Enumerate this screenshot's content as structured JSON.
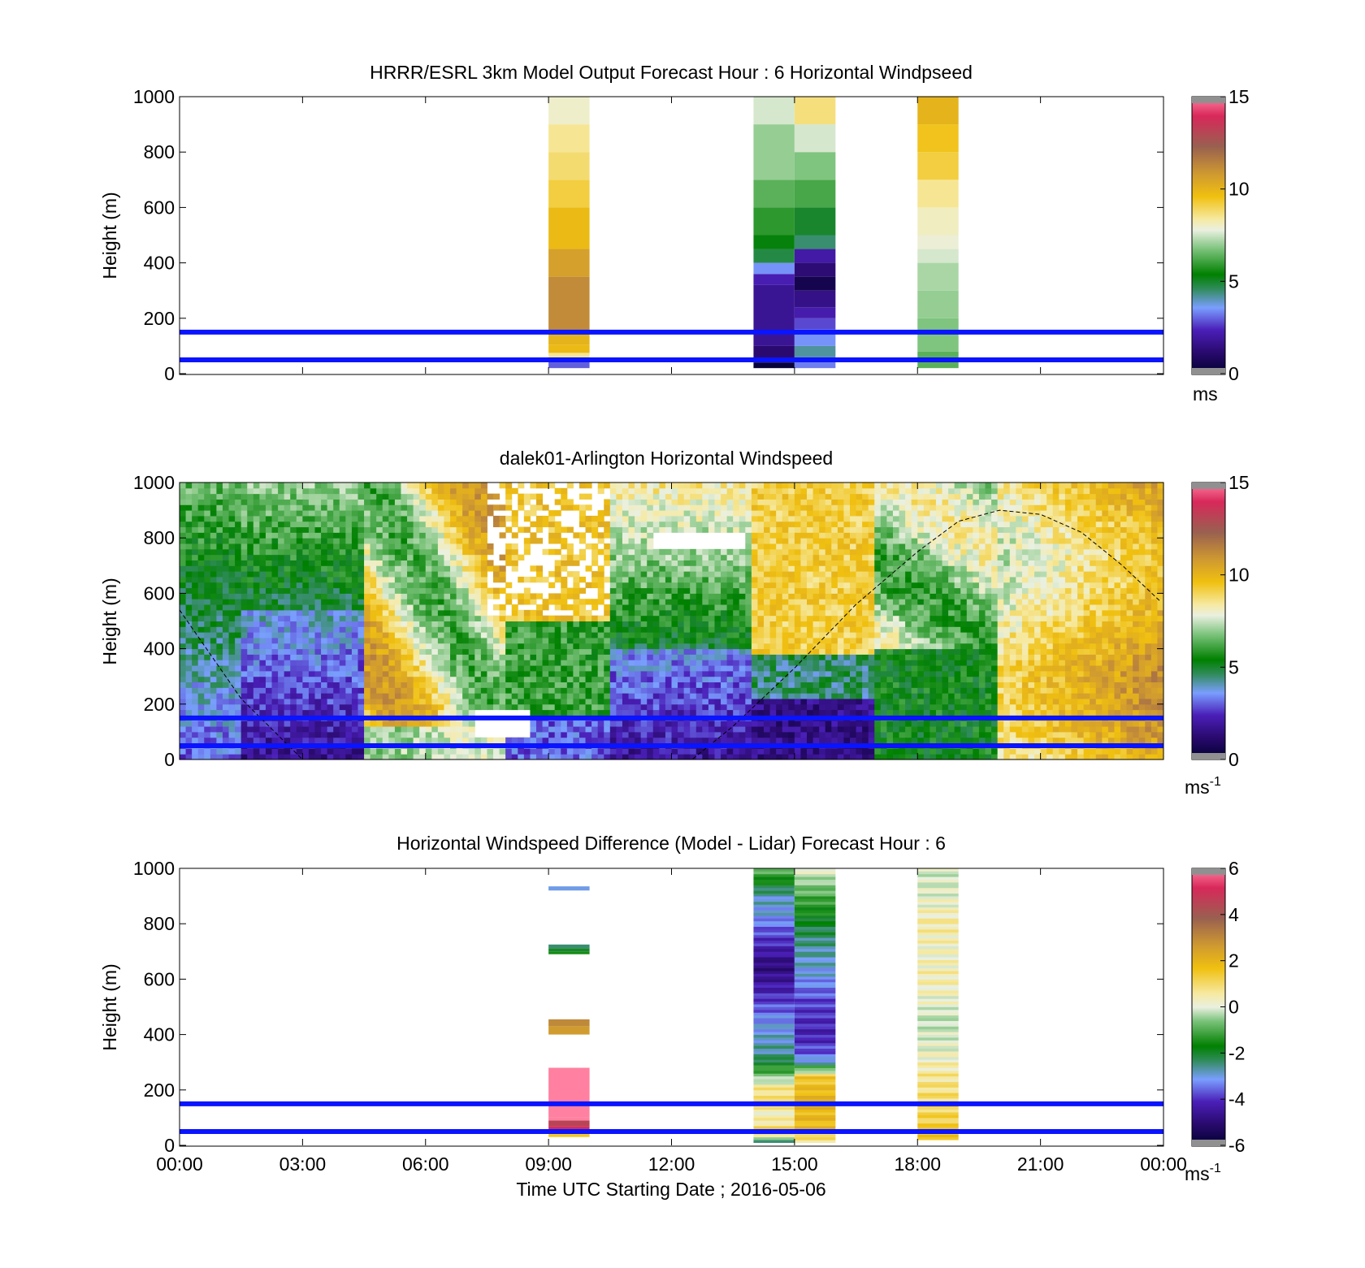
{
  "figure": {
    "xlabel": "Time UTC  Starting Date ; 2016-05-06",
    "start_date": "2016-05-06"
  },
  "chart_data": [
    {
      "type": "heatmap",
      "id": "model",
      "title": "HRRR/ESRL 3km Model Output   Forecast Hour : 6 Horizontal Windpseed",
      "ylabel": "Height (m)",
      "ylim": [
        0,
        1000
      ],
      "yticks": [
        "0",
        "200",
        "400",
        "600",
        "800",
        "1000"
      ],
      "xlim_hours": [
        0,
        24
      ],
      "xticks": [
        "00:00",
        "03:00",
        "06:00",
        "09:00",
        "12:00",
        "15:00",
        "18:00",
        "21:00",
        "00:00"
      ],
      "colorbar": {
        "ticks": [
          "0",
          "5",
          "10",
          "15"
        ],
        "range": [
          0,
          15
        ],
        "unit": "ms"
      },
      "reference_lines_m": [
        50,
        150
      ],
      "columns": [
        {
          "x_hours": [
            9.0,
            10.0
          ],
          "cells": [
            {
              "z0": 20,
              "z1": 50,
              "value": 3.0
            },
            {
              "z0": 50,
              "z1": 75,
              "value": 8.5
            },
            {
              "z0": 75,
              "z1": 105,
              "value": 9.8
            },
            {
              "z0": 105,
              "z1": 145,
              "value": 10.0
            },
            {
              "z0": 145,
              "z1": 350,
              "value": 11.2
            },
            {
              "z0": 350,
              "z1": 450,
              "value": 10.6
            },
            {
              "z0": 450,
              "z1": 600,
              "value": 9.8
            },
            {
              "z0": 600,
              "z1": 700,
              "value": 9.2
            },
            {
              "z0": 700,
              "z1": 800,
              "value": 8.8
            },
            {
              "z0": 800,
              "z1": 900,
              "value": 8.5
            },
            {
              "z0": 900,
              "z1": 1000,
              "value": 8.0
            }
          ]
        },
        {
          "x_hours": [
            14.0,
            15.0
          ],
          "cells": [
            {
              "z0": 20,
              "z1": 40,
              "value": 0.2
            },
            {
              "z0": 40,
              "z1": 100,
              "value": 1.2
            },
            {
              "z0": 100,
              "z1": 320,
              "value": 1.8
            },
            {
              "z0": 320,
              "z1": 360,
              "value": 2.3
            },
            {
              "z0": 360,
              "z1": 400,
              "value": 3.5
            },
            {
              "z0": 400,
              "z1": 450,
              "value": 4.8
            },
            {
              "z0": 450,
              "z1": 500,
              "value": 5.3
            },
            {
              "z0": 500,
              "z1": 600,
              "value": 5.9
            },
            {
              "z0": 600,
              "z1": 700,
              "value": 6.4
            },
            {
              "z0": 700,
              "z1": 900,
              "value": 7.0
            },
            {
              "z0": 900,
              "z1": 1000,
              "value": 7.6
            }
          ]
        },
        {
          "x_hours": [
            15.0,
            16.0
          ],
          "cells": [
            {
              "z0": 20,
              "z1": 60,
              "value": 3.3
            },
            {
              "z0": 60,
              "z1": 100,
              "value": 4.2
            },
            {
              "z0": 100,
              "z1": 160,
              "value": 3.5
            },
            {
              "z0": 160,
              "z1": 200,
              "value": 2.8
            },
            {
              "z0": 200,
              "z1": 240,
              "value": 2.2
            },
            {
              "z0": 240,
              "z1": 300,
              "value": 1.6
            },
            {
              "z0": 300,
              "z1": 350,
              "value": 0.6
            },
            {
              "z0": 350,
              "z1": 400,
              "value": 1.3
            },
            {
              "z0": 400,
              "z1": 450,
              "value": 2.1
            },
            {
              "z0": 450,
              "z1": 500,
              "value": 4.5
            },
            {
              "z0": 500,
              "z1": 600,
              "value": 5.0
            },
            {
              "z0": 600,
              "z1": 700,
              "value": 6.2
            },
            {
              "z0": 700,
              "z1": 800,
              "value": 6.8
            },
            {
              "z0": 800,
              "z1": 900,
              "value": 7.6
            },
            {
              "z0": 900,
              "z1": 1000,
              "value": 8.7
            }
          ]
        },
        {
          "x_hours": [
            18.0,
            19.0
          ],
          "cells": [
            {
              "z0": 20,
              "z1": 80,
              "value": 6.4
            },
            {
              "z0": 80,
              "z1": 200,
              "value": 6.8
            },
            {
              "z0": 200,
              "z1": 300,
              "value": 7.0
            },
            {
              "z0": 300,
              "z1": 400,
              "value": 7.2
            },
            {
              "z0": 400,
              "z1": 450,
              "value": 7.6
            },
            {
              "z0": 450,
              "z1": 500,
              "value": 7.9
            },
            {
              "z0": 500,
              "z1": 600,
              "value": 8.1
            },
            {
              "z0": 600,
              "z1": 700,
              "value": 8.5
            },
            {
              "z0": 700,
              "z1": 800,
              "value": 9.2
            },
            {
              "z0": 800,
              "z1": 900,
              "value": 9.5
            },
            {
              "z0": 900,
              "z1": 1000,
              "value": 10.0
            }
          ]
        }
      ]
    },
    {
      "type": "heatmap",
      "id": "lidar",
      "title": "dalek01-Arlington  Horizontal Windspeed",
      "ylabel": "Height (m)",
      "ylim": [
        0,
        1000
      ],
      "yticks": [
        "0",
        "200",
        "400",
        "600",
        "800",
        "1000"
      ],
      "xlim_hours": [
        0,
        24
      ],
      "xticks": [
        "00:00",
        "03:00",
        "06:00",
        "09:00",
        "12:00",
        "15:00",
        "18:00",
        "21:00",
        "00:00"
      ],
      "colorbar": {
        "ticks": [
          "0",
          "5",
          "10",
          "15"
        ],
        "range": [
          0,
          15
        ],
        "unit": "ms",
        "unit_sup": "-1"
      },
      "reference_lines_m": [
        50,
        150
      ],
      "field_hours": [
        0,
        24
      ],
      "field_z_m": [
        0,
        1000
      ],
      "boundary_layer_curve": [
        [
          0.0,
          540
        ],
        [
          1.5,
          220
        ],
        [
          3.0,
          0
        ],
        [
          4.5,
          0
        ],
        [
          6.0,
          0
        ],
        [
          7.5,
          0
        ],
        [
          9.0,
          0
        ],
        [
          10.5,
          0
        ],
        [
          12.0,
          0
        ],
        [
          12.5,
          0
        ],
        [
          13.5,
          120
        ],
        [
          15.0,
          330
        ],
        [
          16.5,
          560
        ],
        [
          18.0,
          750
        ],
        [
          19.0,
          860
        ],
        [
          20.0,
          900
        ],
        [
          21.0,
          885
        ],
        [
          22.0,
          820
        ],
        [
          23.0,
          700
        ],
        [
          24.0,
          560
        ]
      ]
    },
    {
      "type": "heatmap",
      "id": "difference",
      "title": "Horizontal Windspeed Difference (Model - Lidar) Forecast Hour : 6",
      "ylabel": "Height (m)",
      "ylim": [
        0,
        1000
      ],
      "yticks": [
        "0",
        "200",
        "400",
        "600",
        "800",
        "1000"
      ],
      "xlim_hours": [
        0,
        24
      ],
      "xticks": [
        "00:00",
        "03:00",
        "06:00",
        "09:00",
        "12:00",
        "15:00",
        "18:00",
        "21:00",
        "00:00"
      ],
      "colorbar": {
        "ticks": [
          "-6",
          "-4",
          "-2",
          "0",
          "2",
          "4",
          "6"
        ],
        "range": [
          -6,
          6
        ],
        "unit": "ms",
        "unit_sup": "-1"
      },
      "reference_lines_m": [
        50,
        150
      ],
      "columns": [
        {
          "x_hours": [
            9.0,
            10.0
          ],
          "cells": [
            {
              "z0": 920,
              "z1": 935,
              "value": -3.0
            },
            {
              "z0": 690,
              "z1": 700,
              "value": -1.5
            },
            {
              "z0": 700,
              "z1": 712,
              "value": -2.0
            },
            {
              "z0": 712,
              "z1": 725,
              "value": -2.4
            },
            {
              "z0": 400,
              "z1": 430,
              "value": 2.6
            },
            {
              "z0": 430,
              "z1": 455,
              "value": 3.0
            },
            {
              "z0": 30,
              "z1": 50,
              "value": 1.5
            },
            {
              "z0": 50,
              "z1": 70,
              "value": 5.0
            },
            {
              "z0": 70,
              "z1": 90,
              "value": 4.5
            },
            {
              "z0": 90,
              "z1": 100,
              "value": 6.0
            },
            {
              "z0": 100,
              "z1": 280,
              "value": 6.0
            }
          ]
        },
        {
          "x_hours": [
            14.0,
            15.0
          ],
          "profile": [
            [
              10,
              -3.2
            ],
            [
              40,
              1.5
            ],
            [
              100,
              0.5
            ],
            [
              200,
              1.0
            ],
            [
              250,
              -0.5
            ],
            [
              320,
              -2.5
            ],
            [
              450,
              -3.2
            ],
            [
              560,
              -4.2
            ],
            [
              650,
              -4.9
            ],
            [
              700,
              -4.3
            ],
            [
              760,
              -3.8
            ],
            [
              840,
              -3.0
            ],
            [
              900,
              -2.8
            ],
            [
              960,
              -1.5
            ],
            [
              1000,
              -0.8
            ]
          ]
        },
        {
          "x_hours": [
            15.0,
            16.0
          ],
          "profile": [
            [
              10,
              0.5
            ],
            [
              60,
              1.8
            ],
            [
              180,
              1.9
            ],
            [
              250,
              1.5
            ],
            [
              300,
              -2.8
            ],
            [
              330,
              -3.6
            ],
            [
              400,
              -4.2
            ],
            [
              520,
              -3.8
            ],
            [
              620,
              -3.0
            ],
            [
              720,
              -2.6
            ],
            [
              800,
              -2.0
            ],
            [
              880,
              -1.2
            ],
            [
              950,
              -0.4
            ],
            [
              1000,
              0.3
            ]
          ]
        },
        {
          "x_hours": [
            18.0,
            19.0
          ],
          "profile": [
            [
              20,
              1.5
            ],
            [
              120,
              1.2
            ],
            [
              250,
              0.8
            ],
            [
              350,
              0.2
            ],
            [
              450,
              -0.1
            ],
            [
              520,
              0.3
            ],
            [
              600,
              0.6
            ],
            [
              700,
              0.4
            ],
            [
              800,
              0.7
            ],
            [
              900,
              0.2
            ],
            [
              1000,
              0.0
            ]
          ]
        }
      ]
    }
  ]
}
